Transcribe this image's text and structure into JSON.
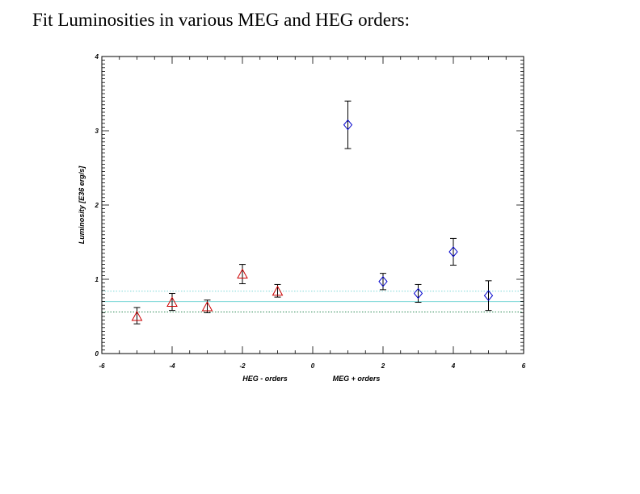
{
  "page": {
    "title": "Fit Luminosities in various MEG and HEG orders:"
  },
  "chart_data": {
    "type": "scatter",
    "title": "Fit Luminosities in various MEG and HEG orders:",
    "ylabel": "Luminosity [E36 erg/s]",
    "xlabel_left": "HEG - orders",
    "xlabel_right": "MEG + orders",
    "xlim": [
      -6,
      6
    ],
    "ylim": [
      0,
      4
    ],
    "xticks": [
      -6,
      -4,
      -2,
      0,
      2,
      4,
      6
    ],
    "xtick_labels": [
      "-6",
      "-4",
      "-2",
      "0",
      "2",
      "4",
      "6"
    ],
    "yticks": [
      0,
      1,
      2,
      3,
      4
    ],
    "ytick_labels": [
      "0",
      "1",
      "2",
      "3",
      "4"
    ],
    "series": [
      {
        "name": "HEG - orders",
        "marker": "triangle",
        "color": "#cc0000",
        "points": [
          {
            "x": -5,
            "y": 0.5,
            "lo": 0.4,
            "hi": 0.62
          },
          {
            "x": -4,
            "y": 0.69,
            "lo": 0.58,
            "hi": 0.81
          },
          {
            "x": -3,
            "y": 0.63,
            "lo": 0.55,
            "hi": 0.72
          },
          {
            "x": -2,
            "y": 1.07,
            "lo": 0.94,
            "hi": 1.2
          },
          {
            "x": -1,
            "y": 0.84,
            "lo": 0.76,
            "hi": 0.93
          }
        ]
      },
      {
        "name": "MEG + orders",
        "marker": "diamond",
        "color": "#0000cc",
        "points": [
          {
            "x": 1,
            "y": 3.08,
            "lo": 2.76,
            "hi": 3.4
          },
          {
            "x": 2,
            "y": 0.97,
            "lo": 0.86,
            "hi": 1.08
          },
          {
            "x": 3,
            "y": 0.81,
            "lo": 0.69,
            "hi": 0.93
          },
          {
            "x": 4,
            "y": 1.37,
            "lo": 1.19,
            "hi": 1.55
          },
          {
            "x": 5,
            "y": 0.78,
            "lo": 0.58,
            "hi": 0.98
          }
        ]
      }
    ],
    "reference_lines": [
      {
        "y": 0.84,
        "style": "dotted",
        "color": "#7fd8d8"
      },
      {
        "y": 0.7,
        "style": "solid",
        "color": "#7fd8d8"
      },
      {
        "y": 0.56,
        "style": "dotted",
        "color": "#2e8b57"
      }
    ]
  }
}
